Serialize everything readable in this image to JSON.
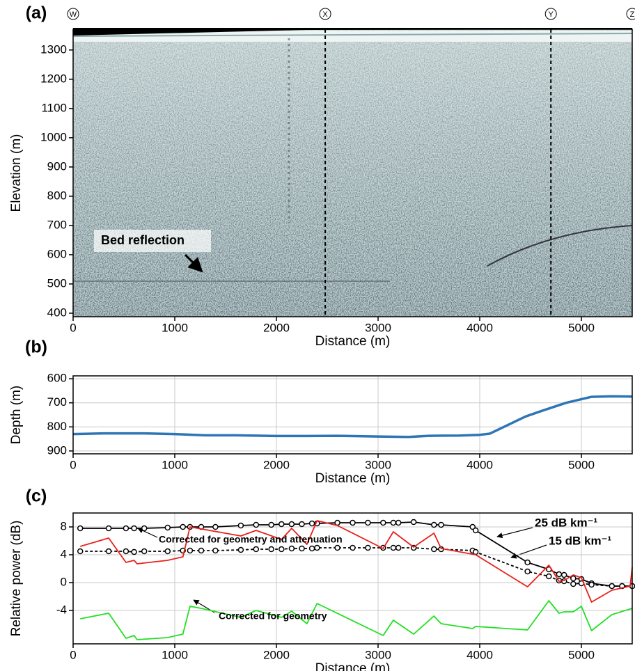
{
  "chart_data": [
    {
      "type": "radargram",
      "panel": "(a)",
      "x_label": "Distance (m)",
      "y_label": "Elevation (m)",
      "xlim": [
        0,
        5500
      ],
      "ylim": [
        388,
        1371
      ],
      "xticks": [
        0,
        1000,
        2000,
        3000,
        4000,
        5000
      ],
      "yticks": [
        400,
        500,
        600,
        700,
        800,
        900,
        1000,
        1100,
        1200,
        1300
      ],
      "markers": [
        {
          "label": "W",
          "x": 0
        },
        {
          "label": "X",
          "x": 2480
        },
        {
          "label": "Y",
          "x": 4700
        },
        {
          "label": "Z",
          "x": 5500
        }
      ],
      "annotations": [
        "Bed reflection"
      ]
    },
    {
      "type": "line",
      "panel": "(b)",
      "x_label": "Distance (m)",
      "y_label": "Depth (m)",
      "xlim": [
        0,
        5500
      ],
      "ylim": [
        912,
        588
      ],
      "xticks": [
        0,
        1000,
        2000,
        3000,
        4000,
        5000
      ],
      "yticks": [
        600,
        700,
        800,
        900
      ],
      "grid": true,
      "x": [
        0,
        300,
        700,
        1000,
        1300,
        1600,
        2000,
        2300,
        2600,
        3000,
        3300,
        3500,
        3800,
        4000,
        4100,
        4450,
        4600,
        4850,
        5100,
        5300,
        5500
      ],
      "values": [
        830,
        827,
        827,
        830,
        835,
        835,
        838,
        838,
        837,
        840,
        842,
        837,
        836,
        833,
        828,
        757,
        735,
        700,
        675,
        673,
        674
      ],
      "color": "#2e75b6"
    },
    {
      "type": "line",
      "panel": "(c)",
      "x_label": "Distance (m)",
      "y_label": "Relative power (dB)",
      "xlim": [
        0,
        5500
      ],
      "ylim": [
        -8.8,
        10
      ],
      "xticks": [
        0,
        1000,
        2000,
        3000,
        4000,
        5000
      ],
      "yticks": [
        -4,
        0,
        4,
        8
      ],
      "grid": true,
      "annotations": [
        "Corrected for geometry and attenuation",
        "Corrected for geometry"
      ],
      "series": [
        {
          "name": "25 dB km⁻¹",
          "color": "#000000",
          "marker": "circle",
          "linestyle": "solid",
          "x": [
            70,
            350,
            520,
            600,
            700,
            930,
            1080,
            1150,
            1260,
            1400,
            1650,
            1800,
            1950,
            2050,
            2150,
            2250,
            2350,
            2400,
            2600,
            2750,
            2900,
            3050,
            3150,
            3200,
            3350,
            3550,
            3620,
            3930,
            3960,
            4470,
            4680,
            4780,
            4830,
            4920,
            5000,
            5100,
            5300,
            5400,
            5500
          ],
          "values": [
            7.8,
            7.8,
            7.8,
            7.8,
            7.8,
            7.9,
            8.0,
            8.0,
            8.0,
            8.0,
            8.2,
            8.3,
            8.3,
            8.4,
            8.4,
            8.4,
            8.5,
            8.5,
            8.6,
            8.6,
            8.6,
            8.6,
            8.6,
            8.6,
            8.7,
            8.3,
            8.3,
            8.0,
            7.5,
            2.9,
            1.9,
            1.2,
            1.1,
            0.6,
            0.5,
            -0.1,
            -0.5,
            -0.5,
            -0.5
          ]
        },
        {
          "name": "15 dB km⁻¹",
          "color": "#000000",
          "marker": "circle",
          "linestyle": "dashed",
          "x": [
            70,
            350,
            520,
            600,
            700,
            930,
            1080,
            1150,
            1260,
            1400,
            1650,
            1800,
            1950,
            2050,
            2150,
            2250,
            2350,
            2400,
            2600,
            2750,
            2900,
            3050,
            3150,
            3200,
            3350,
            3550,
            3620,
            3930,
            3960,
            4470,
            4680,
            4780,
            4830,
            4920,
            5000,
            5100,
            5300,
            5400,
            5500
          ],
          "values": [
            4.5,
            4.5,
            4.5,
            4.4,
            4.5,
            4.5,
            4.6,
            4.6,
            4.6,
            4.6,
            4.7,
            4.8,
            4.8,
            4.8,
            4.9,
            4.9,
            4.9,
            5.0,
            5.0,
            5.0,
            5.0,
            5.0,
            5.0,
            5.0,
            5.0,
            4.8,
            4.8,
            4.6,
            4.4,
            1.6,
            0.9,
            0.3,
            0.2,
            -0.2,
            -0.1,
            -0.3,
            -0.5,
            -0.5,
            -0.5
          ]
        },
        {
          "color": "#e8201c",
          "linestyle": "solid",
          "x": [
            70,
            350,
            520,
            600,
            630,
            930,
            1080,
            1150,
            1650,
            1800,
            2050,
            2150,
            2300,
            2400,
            2600,
            3050,
            3150,
            3350,
            3550,
            3620,
            3960,
            4470,
            4680,
            4780,
            4830,
            4920,
            5000,
            5100,
            5300,
            5480,
            5500
          ],
          "values": [
            5.2,
            6.4,
            2.9,
            3.2,
            2.7,
            3.2,
            3.7,
            8.0,
            6.7,
            7.5,
            6.2,
            7.8,
            5.5,
            8.9,
            8.2,
            4.9,
            7.3,
            5.1,
            7.1,
            4.9,
            4.0,
            -0.6,
            2.5,
            0.2,
            0.3,
            1.1,
            0.7,
            -2.8,
            -1.1,
            -0.5,
            2.2
          ]
        },
        {
          "color": "#22e022",
          "linestyle": "solid",
          "x": [
            70,
            350,
            520,
            600,
            630,
            930,
            1080,
            1150,
            1260,
            1650,
            1800,
            2050,
            2150,
            2300,
            2400,
            3050,
            3150,
            3350,
            3550,
            3620,
            3930,
            3960,
            4470,
            4680,
            4780,
            4830,
            4920,
            5000,
            5100,
            5300,
            5500
          ],
          "values": [
            -5.2,
            -4.4,
            -8.0,
            -7.6,
            -8.2,
            -7.9,
            -7.4,
            -3.4,
            -3.7,
            -5.0,
            -4.0,
            -5.0,
            -4.1,
            -5.9,
            -3.0,
            -7.6,
            -5.4,
            -7.4,
            -4.8,
            -5.9,
            -6.6,
            -6.3,
            -6.8,
            -2.6,
            -4.4,
            -4.2,
            -4.2,
            -3.4,
            -6.9,
            -4.6,
            -3.7
          ]
        }
      ]
    }
  ]
}
